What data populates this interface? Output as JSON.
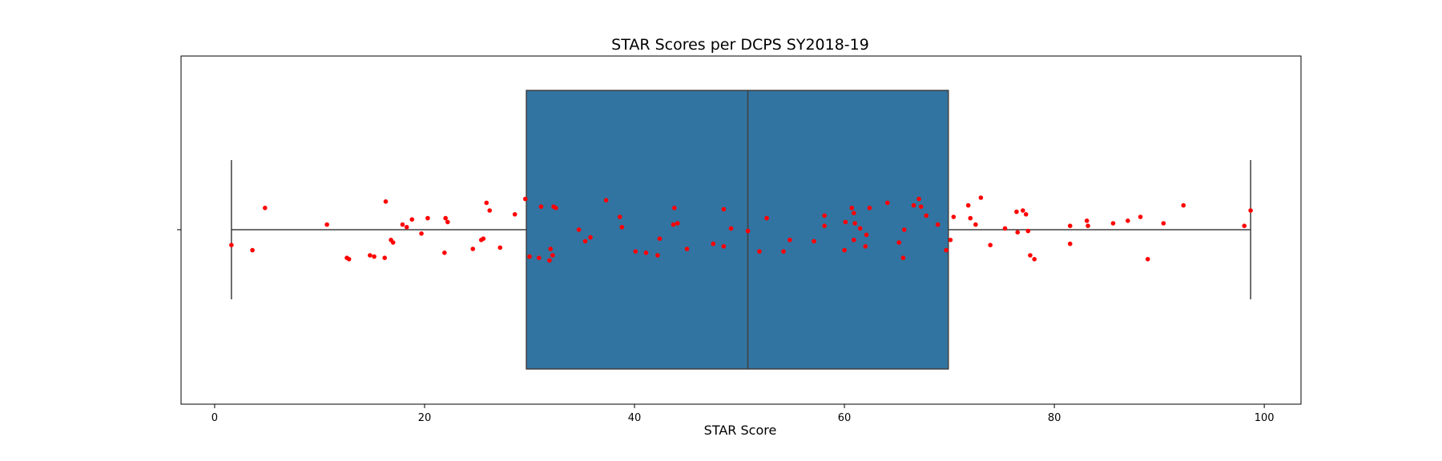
{
  "chart_data": {
    "type": "box",
    "title": "STAR Scores per DCPS SY2018-19",
    "xlabel": "STAR Score",
    "ylabel": "",
    "xlim": [
      -3.2,
      103.5
    ],
    "xticks": [
      0,
      20,
      40,
      60,
      80,
      100
    ],
    "grid": false,
    "legend": "none",
    "box": {
      "whisker_low": 1.6,
      "q1": 29.7,
      "median": 50.8,
      "q3": 69.9,
      "whisker_high": 98.7,
      "color": "#3274a1",
      "edge_color": "#3f3f3f"
    },
    "points_color": "#ff0000",
    "points": [
      [
        1.6,
        -0.12
      ],
      [
        3.6,
        -0.16
      ],
      [
        4.8,
        0.17
      ],
      [
        10.7,
        0.04
      ],
      [
        12.6,
        -0.22
      ],
      [
        12.8,
        -0.23
      ],
      [
        14.8,
        -0.2
      ],
      [
        15.2,
        -0.21
      ],
      [
        16.2,
        -0.22
      ],
      [
        16.3,
        0.22
      ],
      [
        16.8,
        -0.08
      ],
      [
        17.0,
        -0.1
      ],
      [
        17.9,
        0.04
      ],
      [
        18.3,
        0.02
      ],
      [
        18.8,
        0.08
      ],
      [
        19.7,
        -0.03
      ],
      [
        20.3,
        0.09
      ],
      [
        21.9,
        -0.18
      ],
      [
        22.0,
        0.09
      ],
      [
        22.2,
        0.06
      ],
      [
        24.6,
        -0.15
      ],
      [
        25.4,
        -0.08
      ],
      [
        25.6,
        -0.07
      ],
      [
        25.9,
        0.21
      ],
      [
        26.2,
        0.15
      ],
      [
        27.2,
        -0.14
      ],
      [
        28.6,
        0.12
      ],
      [
        29.6,
        0.24
      ],
      [
        30.0,
        -0.21
      ],
      [
        30.9,
        -0.22
      ],
      [
        31.1,
        0.18
      ],
      [
        31.9,
        -0.24
      ],
      [
        32.0,
        -0.15
      ],
      [
        32.2,
        -0.2
      ],
      [
        32.3,
        0.18
      ],
      [
        32.5,
        0.17
      ],
      [
        34.7,
        0.0
      ],
      [
        35.3,
        -0.09
      ],
      [
        35.8,
        -0.06
      ],
      [
        37.3,
        0.23
      ],
      [
        38.6,
        0.1
      ],
      [
        38.8,
        0.02
      ],
      [
        40.1,
        -0.17
      ],
      [
        41.1,
        -0.18
      ],
      [
        42.2,
        -0.2
      ],
      [
        42.4,
        -0.07
      ],
      [
        43.8,
        0.17
      ],
      [
        43.7,
        0.04
      ],
      [
        44.1,
        0.05
      ],
      [
        45.0,
        -0.15
      ],
      [
        47.5,
        -0.11
      ],
      [
        48.5,
        0.16
      ],
      [
        48.5,
        -0.13
      ],
      [
        49.2,
        0.01
      ],
      [
        50.8,
        -0.01
      ],
      [
        51.9,
        -0.17
      ],
      [
        52.6,
        0.09
      ],
      [
        54.2,
        -0.17
      ],
      [
        54.8,
        -0.08
      ],
      [
        57.1,
        -0.09
      ],
      [
        58.1,
        0.11
      ],
      [
        58.1,
        0.03
      ],
      [
        60.0,
        -0.16
      ],
      [
        60.1,
        0.06
      ],
      [
        60.7,
        0.17
      ],
      [
        60.9,
        0.13
      ],
      [
        60.9,
        -0.08
      ],
      [
        61.0,
        0.05
      ],
      [
        61.5,
        0.01
      ],
      [
        62.0,
        -0.13
      ],
      [
        62.1,
        -0.04
      ],
      [
        62.4,
        0.17
      ],
      [
        64.1,
        0.21
      ],
      [
        65.2,
        -0.1
      ],
      [
        65.6,
        -0.22
      ],
      [
        65.7,
        0.0
      ],
      [
        66.6,
        0.19
      ],
      [
        67.1,
        0.24
      ],
      [
        67.3,
        0.18
      ],
      [
        67.8,
        0.11
      ],
      [
        68.9,
        0.04
      ],
      [
        69.7,
        -0.16
      ],
      [
        70.1,
        -0.08
      ],
      [
        70.4,
        0.1
      ],
      [
        71.8,
        0.19
      ],
      [
        72.0,
        0.09
      ],
      [
        72.5,
        0.04
      ],
      [
        73.0,
        0.25
      ],
      [
        73.9,
        -0.12
      ],
      [
        75.3,
        0.01
      ],
      [
        76.4,
        0.14
      ],
      [
        76.5,
        -0.02
      ],
      [
        77.0,
        0.15
      ],
      [
        77.3,
        0.12
      ],
      [
        77.5,
        -0.01
      ],
      [
        77.7,
        -0.2
      ],
      [
        78.1,
        -0.23
      ],
      [
        81.5,
        -0.11
      ],
      [
        81.5,
        0.03
      ],
      [
        83.1,
        0.07
      ],
      [
        83.2,
        0.03
      ],
      [
        85.6,
        0.05
      ],
      [
        87.0,
        0.07
      ],
      [
        88.2,
        0.1
      ],
      [
        88.9,
        -0.23
      ],
      [
        90.4,
        0.05
      ],
      [
        92.3,
        0.19
      ],
      [
        98.1,
        0.03
      ],
      [
        98.7,
        0.15
      ]
    ]
  }
}
